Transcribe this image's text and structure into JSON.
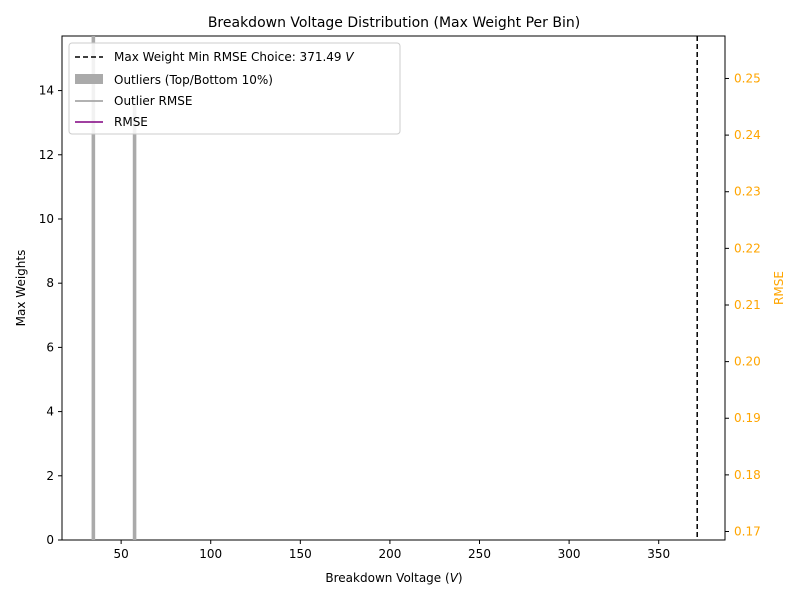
{
  "chart_data": {
    "type": "bar",
    "title": "Breakdown Voltage Distribution (Max Weight Per Bin)",
    "xlabel_main": "Breakdown Voltage (",
    "xlabel_var": "V",
    "xlabel_end": ")",
    "ylabel": "Max Weights",
    "ylabel_right": "RMSE",
    "xlim": [
      17,
      387
    ],
    "ylim": [
      0,
      15.7
    ],
    "ylim_right": [
      0.1685,
      0.2575
    ],
    "xticks": [
      50,
      100,
      150,
      200,
      250,
      300,
      350
    ],
    "yticks": [
      0,
      2,
      4,
      6,
      8,
      10,
      12,
      14
    ],
    "yticks_right": [
      0.17,
      0.18,
      0.19,
      0.2,
      0.21,
      0.22,
      0.23,
      0.24,
      0.25
    ],
    "yticks_right_labels": [
      "0.17",
      "0.18",
      "0.19",
      "0.20",
      "0.21",
      "0.22",
      "0.23",
      "0.24",
      "0.25"
    ],
    "grid": false,
    "legend_position": "top-left",
    "outlier_bars": [
      {
        "x": 34.5,
        "width": 2.0,
        "value": 15.7
      },
      {
        "x": 57.5,
        "width": 2.0,
        "value": 13.6
      }
    ],
    "vline": {
      "x": 371.49
    },
    "series": [
      {
        "name": "Max Weight Min RMSE Choice: 371.49 ",
        "name_var": "V",
        "kind": "vline",
        "color": "#000000"
      },
      {
        "name": "Outliers (Top/Bottom 10%)",
        "kind": "bar",
        "color": "#aaaaaa"
      },
      {
        "name": "Outlier RMSE",
        "kind": "line",
        "color": "#999999"
      },
      {
        "name": "RMSE",
        "kind": "line",
        "color": "#800080"
      }
    ],
    "colors": {
      "outlier_bar": "#aaaaaa",
      "right_axis": "#ffa500",
      "vline": "#000000",
      "outlier_rmse": "#999999",
      "rmse": "#800080"
    }
  }
}
